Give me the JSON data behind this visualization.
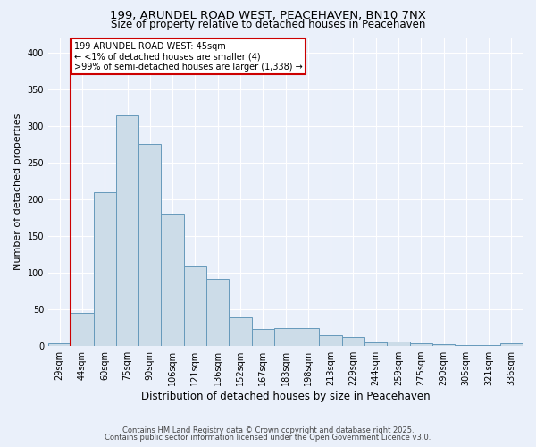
{
  "title1": "199, ARUNDEL ROAD WEST, PEACEHAVEN, BN10 7NX",
  "title2": "Size of property relative to detached houses in Peacehaven",
  "xlabel": "Distribution of detached houses by size in Peacehaven",
  "ylabel": "Number of detached properties",
  "bin_labels": [
    "29sqm",
    "44sqm",
    "60sqm",
    "75sqm",
    "90sqm",
    "106sqm",
    "121sqm",
    "136sqm",
    "152sqm",
    "167sqm",
    "183sqm",
    "198sqm",
    "213sqm",
    "229sqm",
    "244sqm",
    "259sqm",
    "275sqm",
    "290sqm",
    "305sqm",
    "321sqm",
    "336sqm"
  ],
  "bar_values": [
    4,
    45,
    210,
    315,
    275,
    180,
    108,
    92,
    39,
    23,
    25,
    25,
    15,
    12,
    5,
    6,
    4,
    3,
    1,
    1,
    4
  ],
  "bar_color": "#ccdce8",
  "bar_edge_color": "#6699bb",
  "background_color": "#eaf0fa",
  "grid_color": "#ffffff",
  "annotation_line1": "199 ARUNDEL ROAD WEST: 45sqm",
  "annotation_line2": "← <1% of detached houses are smaller (4)",
  "annotation_line3": ">99% of semi-detached houses are larger (1,338) →",
  "annotation_box_color": "white",
  "annotation_box_edge_color": "#cc0000",
  "red_line_bin_index": 1,
  "ylim": [
    0,
    420
  ],
  "yticks": [
    0,
    50,
    100,
    150,
    200,
    250,
    300,
    350,
    400
  ],
  "footnote1": "Contains HM Land Registry data © Crown copyright and database right 2025.",
  "footnote2": "Contains public sector information licensed under the Open Government Licence v3.0."
}
